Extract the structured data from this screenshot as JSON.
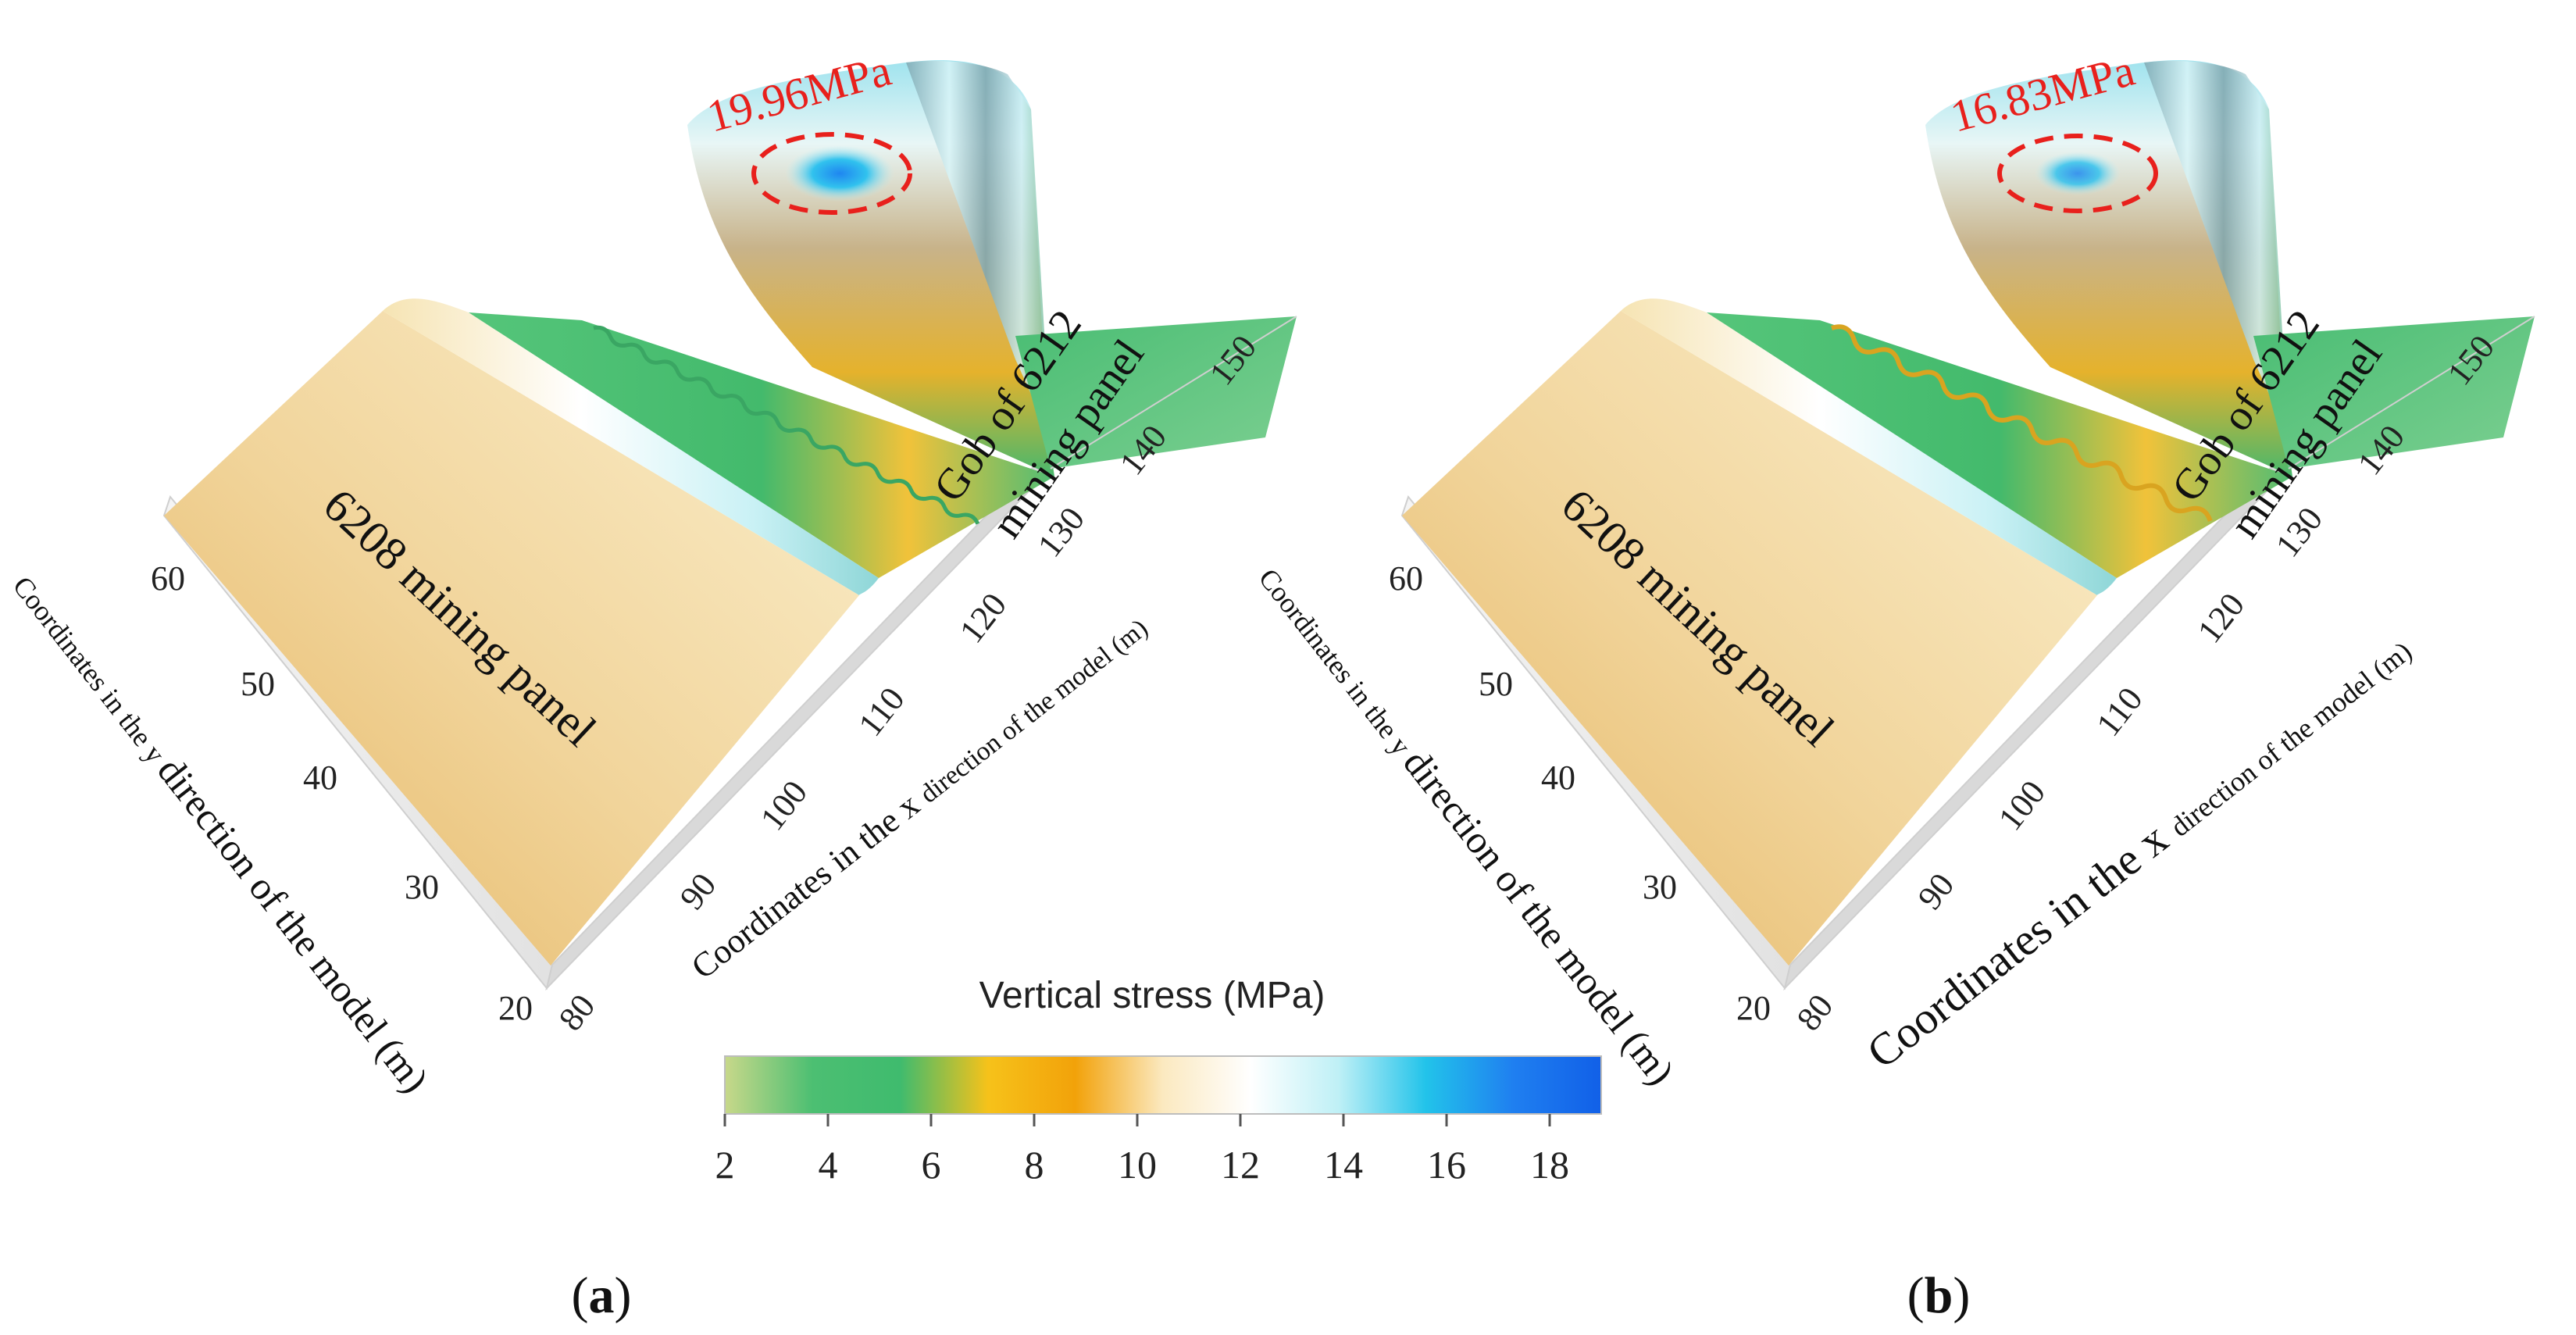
{
  "chart_data": [
    {
      "type": "surface",
      "panel_label_letter": "a",
      "xlabel": "Coordinates in the x direction of the model (m)",
      "ylabel": "Coordinates in the y direction of the model (m)",
      "x_ticks": [
        "80",
        "90",
        "100",
        "110",
        "120",
        "130",
        "140",
        "150"
      ],
      "y_ticks": [
        "20",
        "30",
        "40",
        "50",
        "60"
      ],
      "xlim": [
        80,
        155
      ],
      "ylim": [
        20,
        65
      ],
      "annotations": {
        "peak_stress": "19.96MPa",
        "gob": "Gob of 6212",
        "gob_line2": "mining panel",
        "panel": "6208 mining panel"
      },
      "peak_value": 19.96
    },
    {
      "type": "surface",
      "panel_label_letter": "b",
      "xlabel": "Coordinates in the x direction of the model (m)",
      "ylabel": "Coordinates in the y direction of the model (m)",
      "x_ticks": [
        "80",
        "90",
        "100",
        "110",
        "120",
        "130",
        "140",
        "150"
      ],
      "y_ticks": [
        "20",
        "30",
        "40",
        "50",
        "60"
      ],
      "xlim": [
        80,
        155
      ],
      "ylim": [
        20,
        65
      ],
      "annotations": {
        "peak_stress": "16.83MPa",
        "gob": "Gob of 6212",
        "gob_line2": "mining panel",
        "panel": "6208 mining panel"
      },
      "peak_value": 16.83
    }
  ],
  "colorbar": {
    "title": "Vertical stress (MPa)",
    "ticks": [
      "2",
      "4",
      "6",
      "8",
      "10",
      "12",
      "14",
      "16",
      "18"
    ],
    "range": [
      2,
      19
    ],
    "colors": [
      "#c8d88a",
      "#4cbf72",
      "#3fbb6e",
      "#f6c21a",
      "#f2a20a",
      "#fbe9c0",
      "#ffffff",
      "#bff0f6",
      "#22c3ea",
      "#1f7ff0",
      "#1160e8"
    ]
  }
}
